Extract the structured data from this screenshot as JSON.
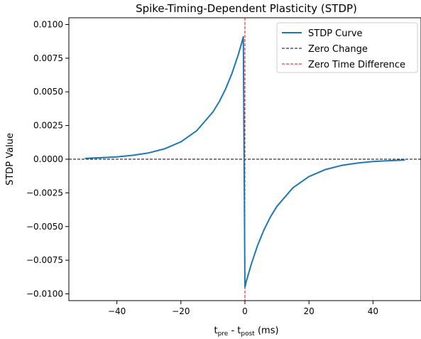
{
  "chart_data": {
    "type": "line",
    "title": "Spike-Timing-Dependent Plasticity (STDP)",
    "xlabel": {
      "base1": "t",
      "sub1": "pre",
      "mid": " - t",
      "sub2": "post",
      "unit": " (ms)"
    },
    "ylabel": "STDP Value",
    "xlim": [
      -55,
      55
    ],
    "ylim": [
      -0.0105,
      0.0105
    ],
    "x_ticks": [
      -40,
      -20,
      0,
      20,
      40
    ],
    "x_tick_labels": [
      "−40",
      "−20",
      "0",
      "20",
      "40"
    ],
    "y_ticks": [
      0.01,
      0.0075,
      0.005,
      0.0025,
      0,
      -0.0025,
      -0.005,
      -0.0075,
      -0.01
    ],
    "y_tick_labels": [
      "0.0100",
      "0.0075",
      "0.0050",
      "0.0025",
      "0.0000",
      "−0.0025",
      "−0.0050",
      "−0.0075",
      "−0.0100"
    ],
    "grid": false,
    "legend_position": "upper right",
    "series": [
      {
        "name": "STDP Curve",
        "color": "#1f77b4",
        "style": "solid",
        "x": [
          -50,
          -45,
          -40,
          -35,
          -30,
          -25,
          -20,
          -15,
          -10,
          -8,
          -6,
          -4,
          -2,
          -1,
          -0.5,
          0,
          0.5,
          1,
          2,
          4,
          6,
          8,
          10,
          15,
          20,
          25,
          30,
          35,
          40,
          45,
          50
        ],
        "y": [
          6e-05,
          0.00011,
          0.00017,
          0.00029,
          0.00047,
          0.00078,
          0.00129,
          0.00213,
          0.00351,
          0.00428,
          0.00524,
          0.0064,
          0.00782,
          0.00865,
          0.00909,
          -0.0095,
          -0.009,
          -0.0086,
          -0.00778,
          -0.00637,
          -0.00522,
          -0.00427,
          -0.0035,
          -0.00212,
          -0.00129,
          -0.00078,
          -0.00047,
          -0.00029,
          -0.00017,
          -0.00011,
          -6e-05
        ]
      },
      {
        "name": "Zero Change",
        "color": "#000000",
        "style": "dashed",
        "orientation": "horizontal",
        "value": 0
      },
      {
        "name": "Zero Time Difference",
        "color": "#ff0000",
        "style": "dashed",
        "orientation": "vertical",
        "value": 0
      }
    ]
  }
}
